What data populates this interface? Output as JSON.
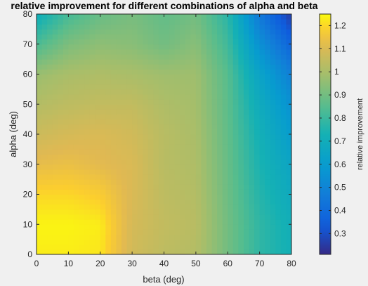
{
  "chart_data": {
    "type": "heatmap",
    "title": "relative improvement for different combinations of alpha and beta",
    "xlabel": "beta (deg)",
    "ylabel": "alpha (deg)",
    "xlim": [
      0,
      80
    ],
    "ylim": [
      0,
      80
    ],
    "x_ticks": [
      "0",
      "10",
      "20",
      "30",
      "40",
      "50",
      "60",
      "70",
      "80"
    ],
    "y_ticks": [
      "0",
      "10",
      "20",
      "30",
      "40",
      "50",
      "60",
      "70",
      "80"
    ],
    "colorbar": {
      "label": "relative improvement",
      "range": [
        0.21,
        1.25
      ],
      "ticks": [
        "0.3",
        "0.4",
        "0.5",
        "0.6",
        "0.7",
        "0.8",
        "0.9",
        "1",
        "1.1",
        "1.2"
      ],
      "colormap": "parula"
    },
    "grid_x": [
      0,
      10,
      20,
      30,
      40,
      50,
      60,
      70,
      80
    ],
    "grid_y": [
      0,
      10,
      20,
      30,
      40,
      50,
      60,
      70,
      80
    ],
    "z": [
      [
        1.23,
        1.23,
        1.22,
        1.08,
        1.04,
        1.02,
        0.9,
        0.78,
        0.72
      ],
      [
        1.24,
        1.24,
        1.23,
        1.09,
        1.05,
        1.03,
        0.9,
        0.78,
        0.71
      ],
      [
        1.2,
        1.2,
        1.18,
        1.1,
        1.04,
        1.02,
        0.89,
        0.76,
        0.68
      ],
      [
        1.13,
        1.14,
        1.12,
        1.1,
        1.03,
        1.01,
        0.88,
        0.74,
        0.65
      ],
      [
        1.07,
        1.09,
        1.1,
        1.08,
        1.03,
        1.0,
        0.87,
        0.72,
        0.6
      ],
      [
        1.02,
        1.04,
        1.05,
        1.05,
        1.01,
        0.99,
        0.86,
        0.69,
        0.55
      ],
      [
        0.97,
        1.0,
        1.01,
        1.0,
        0.98,
        0.98,
        0.85,
        0.64,
        0.48
      ],
      [
        0.83,
        0.92,
        0.95,
        0.94,
        0.9,
        0.94,
        0.81,
        0.55,
        0.37
      ],
      [
        0.7,
        0.82,
        0.88,
        0.91,
        0.87,
        0.9,
        0.77,
        0.45,
        0.25
      ]
    ]
  }
}
